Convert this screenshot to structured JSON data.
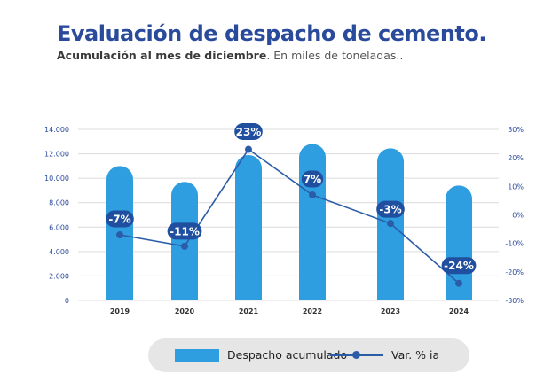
{
  "title": "Evaluación de despacho de cemento.",
  "subtitle_bold": "Acumulación al mes de diciembre",
  "subtitle_rest": ". En miles de toneladas..",
  "legend": {
    "bar_label": "Despacho acumulado",
    "line_label": "Var. % ia"
  },
  "colors": {
    "bar": "#2e9ee0",
    "line": "#2a5ca8",
    "label_bg": "#1f4f9e",
    "title": "#2a4b9b"
  },
  "chart_data": {
    "type": "bar",
    "categories": [
      "2019",
      "2020",
      "2021",
      "2022",
      "2023",
      "2024"
    ],
    "series": [
      {
        "name": "Despacho acumulado",
        "type": "bar",
        "axis": "left",
        "values": [
          11000,
          9700,
          11900,
          12800,
          12450,
          9400
        ]
      },
      {
        "name": "Var. % ia",
        "type": "line",
        "axis": "right",
        "values": [
          -7,
          -11,
          23,
          7,
          -3,
          -24
        ],
        "labels": [
          "-7%",
          "-11%",
          "23%",
          "7%",
          "-3%",
          "-24%"
        ]
      }
    ],
    "y_left": {
      "ylim": [
        0,
        14000
      ],
      "ticks": [
        0,
        2000,
        4000,
        6000,
        8000,
        10000,
        12000,
        14000
      ],
      "tick_labels": [
        "0",
        "2.000",
        "4.000",
        "6.000",
        "8.000",
        "10.000",
        "12.000",
        "14.000"
      ]
    },
    "y_right": {
      "ylim": [
        -30,
        30
      ],
      "ticks": [
        -30,
        -20,
        -10,
        0,
        10,
        20,
        30
      ],
      "tick_labels": [
        "-30%",
        "-20%",
        "-10%",
        "0%",
        "10%",
        "20%",
        "30%"
      ]
    },
    "grid": true,
    "legend_position": "bottom"
  }
}
